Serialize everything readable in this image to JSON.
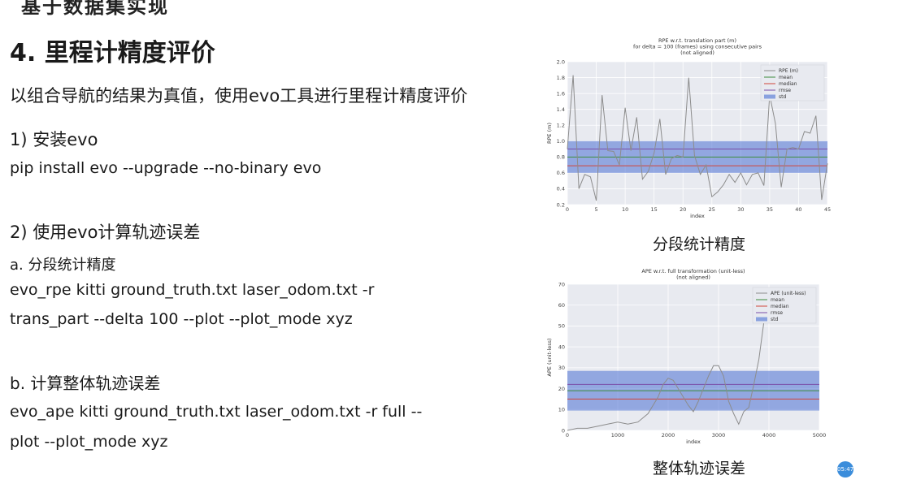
{
  "slide": {
    "top_cut_title": "基于数据集实现",
    "section_title": "4. 里程计精度评价",
    "intro": "以组合导航的结果为真值，使用evo工具进行里程计精度评价",
    "step1": "1) 安装evo",
    "cmd_install": "pip install evo --upgrade --no-binary evo",
    "step2": "2) 使用evo计算轨迹误差",
    "sub_a": "a. 分段统计精度",
    "cmd_rpe_line1": "evo_rpe kitti ground_truth.txt laser_odom.txt -r",
    "cmd_rpe_line2": "trans_part --delta 100 --plot --plot_mode xyz",
    "sub_b": "b. 计算整体轨迹误差",
    "cmd_ape_line1": "evo_ape kitti ground_truth.txt laser_odom.txt -r full --",
    "cmd_ape_line2": "plot --plot_mode xyz",
    "caption_rpe": "分段统计精度",
    "caption_ape": "整体轨迹误差",
    "timer": "05:47"
  },
  "colors": {
    "plot_bg": "#e8eaf0",
    "series": "#8c8c8c",
    "mean": "#3c8c3c",
    "median": "#d0453a",
    "rmse": "#7a4da8",
    "std": "#4a6fd4"
  },
  "chart_data": [
    {
      "type": "line",
      "title": "RPE w.r.t. translation part (m)",
      "subtitle_1": "for delta = 100 (frames) using consecutive pairs",
      "subtitle_2": "(not aligned)",
      "xlabel": "index",
      "ylabel": "RPE (m)",
      "xlim": [
        0,
        45
      ],
      "ylim": [
        0.2,
        2.0
      ],
      "xticks": [
        "0",
        "5",
        "10",
        "15",
        "20",
        "25",
        "30",
        "35",
        "40",
        "45"
      ],
      "yticks": [
        "0.2",
        "0.4",
        "0.6",
        "0.8",
        "1.0",
        "1.2",
        "1.4",
        "1.6",
        "1.8",
        "2.0"
      ],
      "legend": [
        "RPE (m)",
        "mean",
        "median",
        "rmse",
        "std"
      ],
      "x": [
        0,
        1,
        2,
        3,
        4,
        5,
        6,
        7,
        8,
        9,
        10,
        11,
        12,
        13,
        14,
        15,
        16,
        17,
        18,
        19,
        20,
        21,
        22,
        23,
        24,
        25,
        26,
        27,
        28,
        29,
        30,
        31,
        32,
        33,
        34,
        35,
        36,
        37,
        38,
        39,
        40,
        41,
        42,
        43,
        44,
        45
      ],
      "values": [
        0.9,
        1.83,
        0.4,
        0.58,
        0.55,
        0.25,
        1.58,
        0.88,
        0.87,
        0.7,
        1.42,
        0.88,
        1.3,
        0.52,
        0.62,
        0.85,
        1.28,
        0.58,
        0.78,
        0.82,
        0.8,
        1.8,
        0.82,
        0.58,
        0.7,
        0.3,
        0.36,
        0.45,
        0.58,
        0.48,
        0.6,
        0.45,
        0.58,
        0.6,
        0.44,
        1.58,
        1.22,
        0.42,
        0.9,
        0.92,
        0.9,
        1.12,
        1.1,
        1.32,
        0.26,
        0.72
      ],
      "mean": 0.8,
      "median": 0.69,
      "rmse": 0.9,
      "std_band": [
        0.6,
        1.0
      ]
    },
    {
      "type": "line",
      "title": "APE w.r.t. full transformation (unit-less)",
      "subtitle_1": "(not aligned)",
      "xlabel": "index",
      "ylabel": "APE (unit-less)",
      "xlim": [
        0,
        5000
      ],
      "ylim": [
        0,
        70
      ],
      "xticks": [
        "0",
        "1000",
        "2000",
        "3000",
        "4000",
        "5000"
      ],
      "yticks": [
        "0",
        "10",
        "20",
        "30",
        "40",
        "50",
        "60",
        "70"
      ],
      "legend": [
        "APE (unit-less)",
        "mean",
        "median",
        "rmse",
        "std"
      ],
      "x": [
        0,
        200,
        400,
        600,
        800,
        1000,
        1200,
        1400,
        1600,
        1800,
        1900,
        2000,
        2100,
        2200,
        2300,
        2400,
        2500,
        2600,
        2700,
        2800,
        2900,
        3000,
        3100,
        3200,
        3300,
        3400,
        3500,
        3600,
        3700,
        3800,
        3900,
        4000
      ],
      "values": [
        0,
        1,
        1,
        2,
        3,
        4,
        3,
        4,
        8,
        16,
        22,
        25,
        24,
        20,
        16,
        12,
        9,
        14,
        20,
        26,
        31,
        31,
        26,
        14,
        8,
        3,
        9,
        11,
        22,
        34,
        52,
        58
      ],
      "mean": 19,
      "median": 15,
      "rmse": 22,
      "std_band": [
        9.5,
        28.5
      ]
    }
  ]
}
